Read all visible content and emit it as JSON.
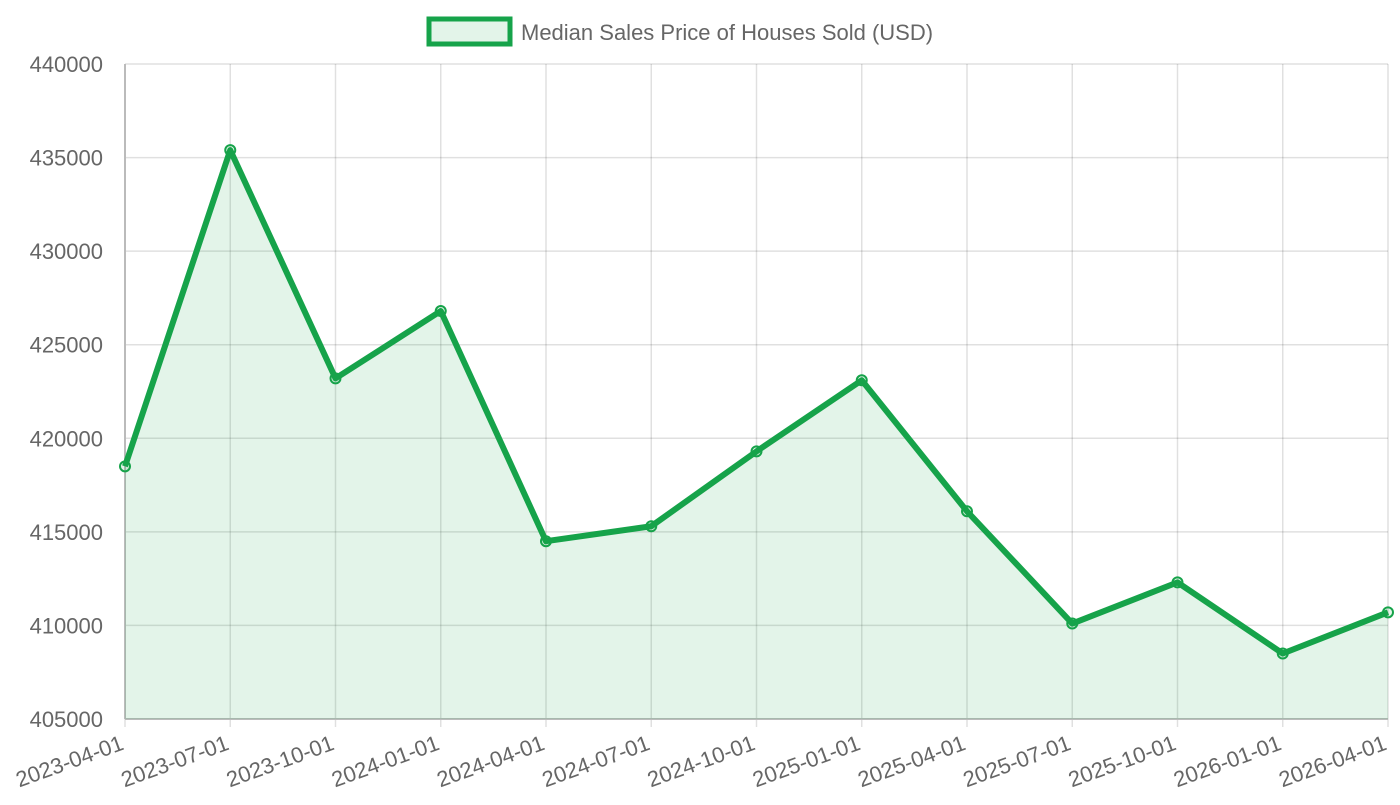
{
  "chart_data": {
    "type": "line",
    "categories": [
      "2023-04-01",
      "2023-07-01",
      "2023-10-01",
      "2024-01-01",
      "2024-04-01",
      "2024-07-01",
      "2024-10-01",
      "2025-01-01",
      "2025-04-01",
      "2025-07-01",
      "2025-10-01",
      "2026-01-01",
      "2026-04-01"
    ],
    "series": [
      {
        "name": "Median Sales Price of Houses Sold (USD)",
        "color": "#16a34a",
        "fill": "rgba(22,163,74,0.12)",
        "values": [
          418500,
          435400,
          423200,
          426800,
          414500,
          415300,
          419300,
          423100,
          416100,
          410100,
          412300,
          408500,
          410700
        ]
      }
    ],
    "ylim": [
      405000,
      440000
    ],
    "yticks": [
      405000,
      410000,
      415000,
      420000,
      425000,
      430000,
      435000,
      440000
    ],
    "grid": true,
    "legend": "top"
  }
}
